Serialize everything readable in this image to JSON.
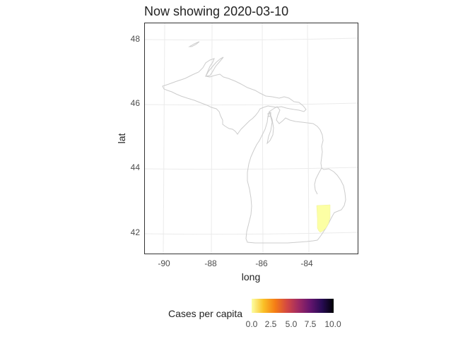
{
  "map": {
    "title": "Now showing 2020-03-10",
    "x_axis_title": "long",
    "y_axis_title": "lat",
    "x_ticks": [
      "-90",
      "-88",
      "-86",
      "-84"
    ],
    "y_ticks": [
      "48",
      "46",
      "44",
      "42"
    ],
    "region": "Michigan counties",
    "highlighted_county_fill": "#FCFFA4",
    "border_color": "#cccccc",
    "grid_color": "#ebebeb"
  },
  "legend": {
    "title": "Cases per capita",
    "labels": [
      "0.0",
      "2.5",
      "5.0",
      "7.5",
      "10.0"
    ],
    "gradient": [
      "#FCFFA4",
      "#FAC127",
      "#F57D15",
      "#D44842",
      "#9F2A63",
      "#65156E",
      "#280B54",
      "#000004"
    ]
  }
}
